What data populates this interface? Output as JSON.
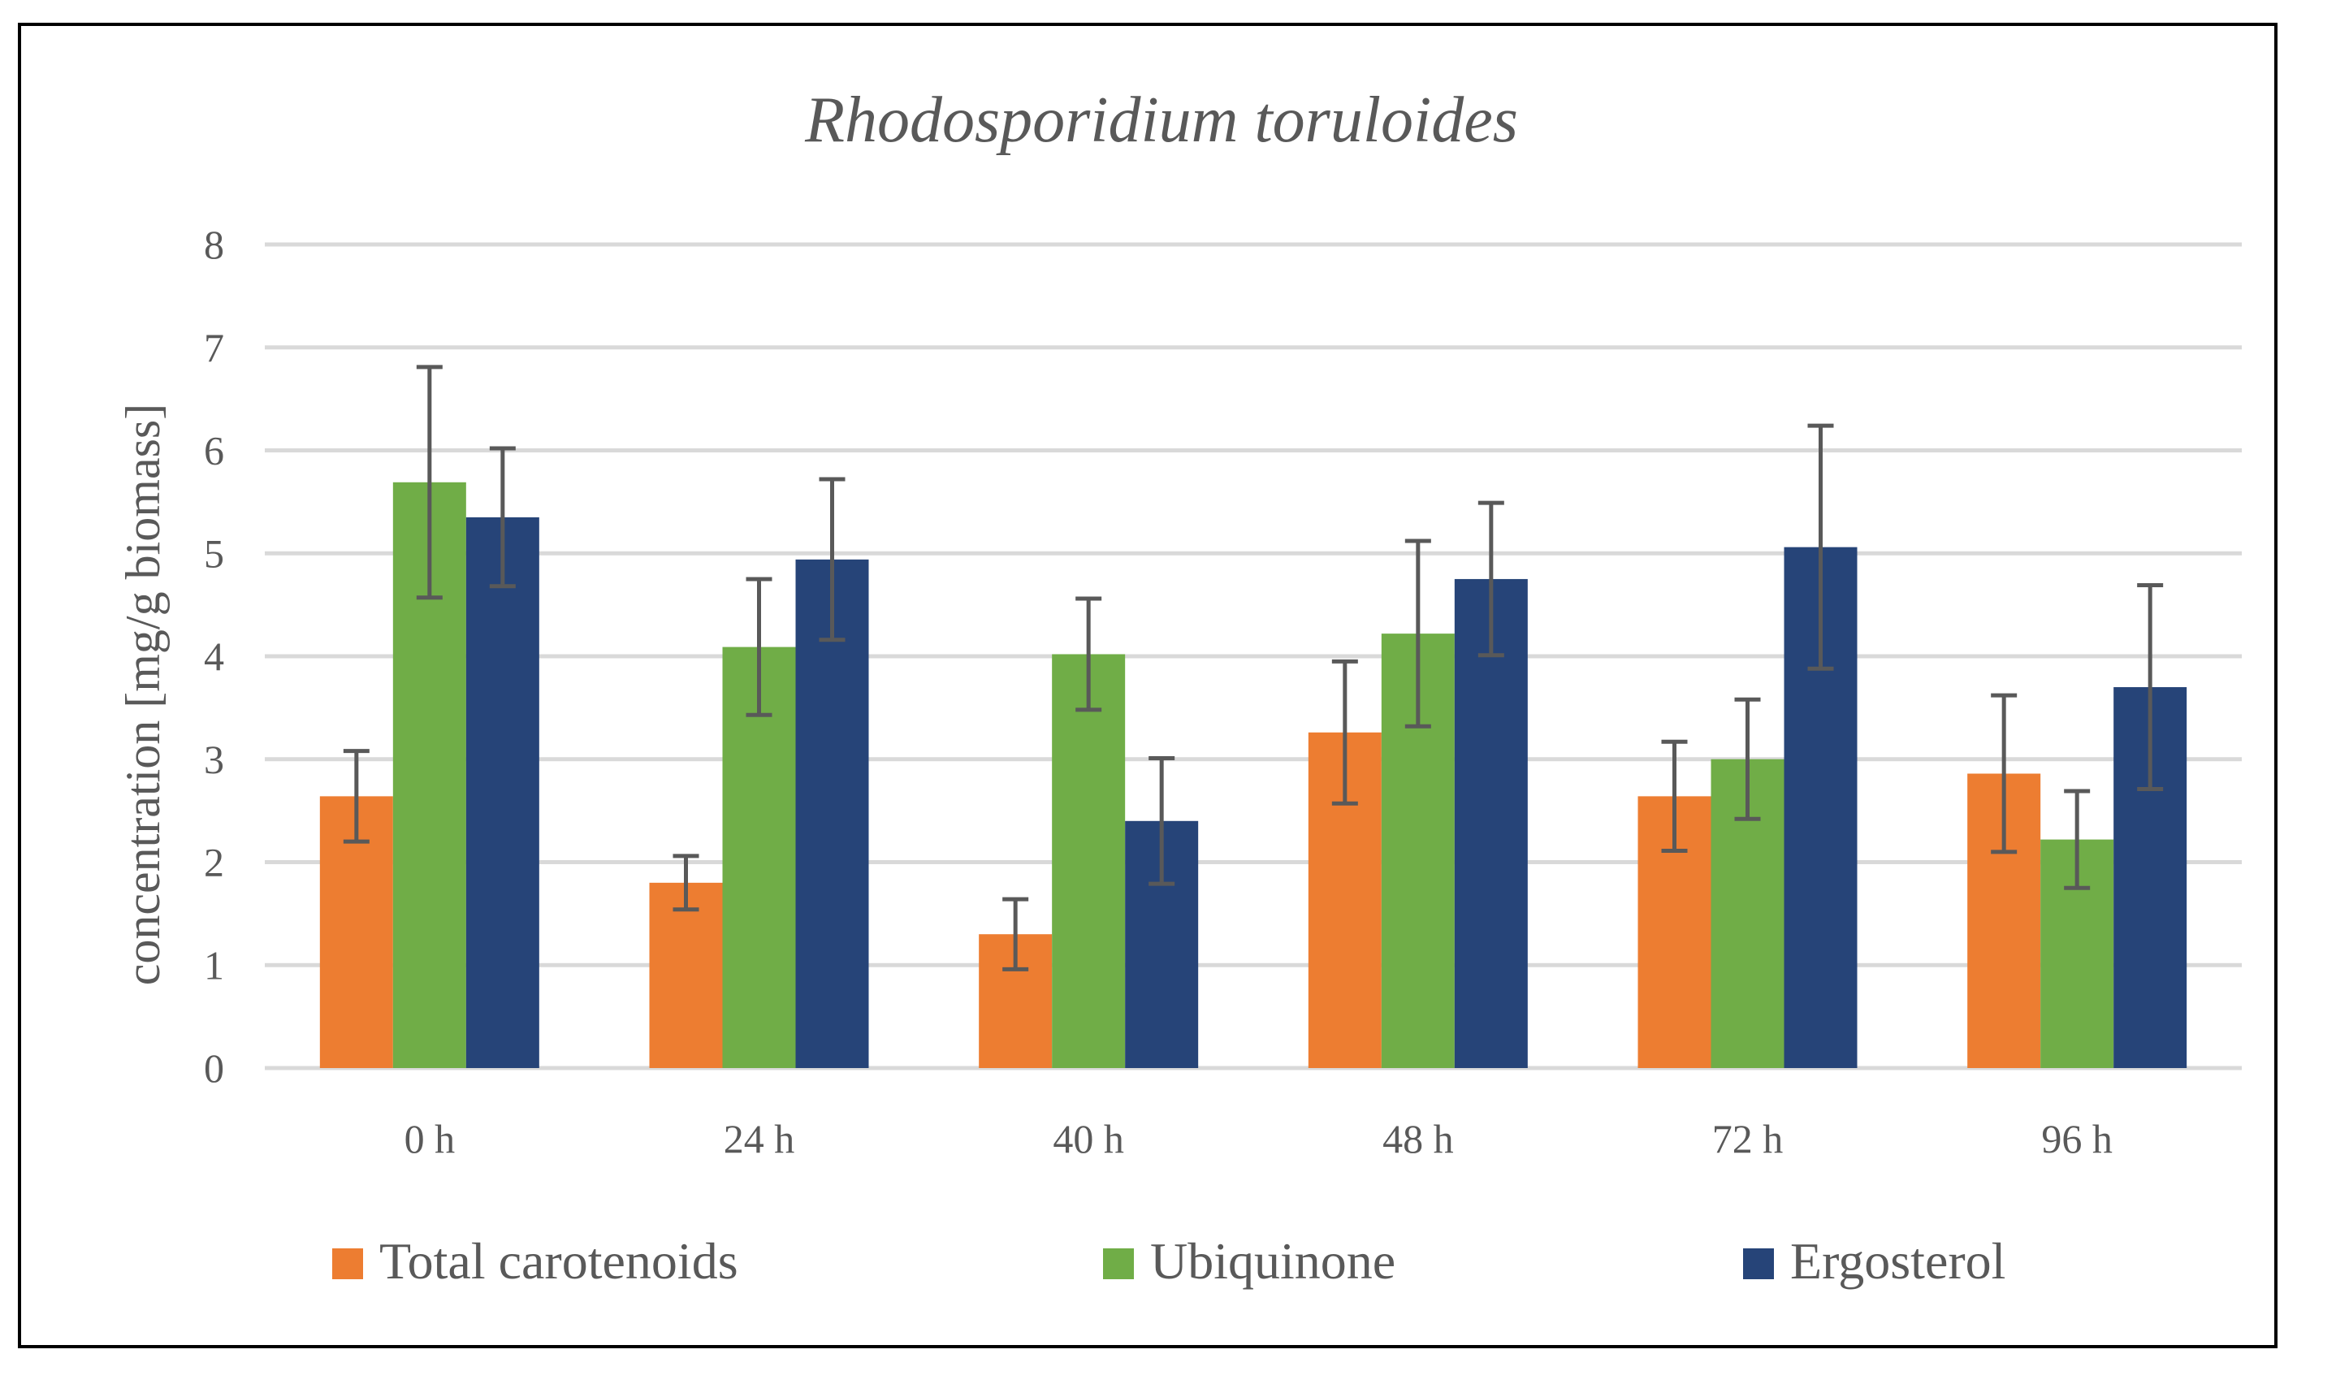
{
  "chart_data": {
    "type": "bar",
    "title": "Rhodosporidium toruloides",
    "xlabel": "",
    "ylabel": "concentration [mg/g biomass]",
    "ylim": [
      0,
      8
    ],
    "yticks": [
      0,
      1,
      2,
      3,
      4,
      5,
      6,
      7,
      8
    ],
    "grid": true,
    "legend_position": "bottom",
    "categories": [
      "0 h",
      "24 h",
      "40 h",
      "48 h",
      "72 h",
      "96 h"
    ],
    "series": [
      {
        "name": "Total carotenoids",
        "color": "#ed7d31",
        "values": [
          2.64,
          1.8,
          1.3,
          3.26,
          2.64,
          2.86
        ],
        "error": [
          0.44,
          0.26,
          0.34,
          0.69,
          0.53,
          0.76
        ]
      },
      {
        "name": "Ubiquinone",
        "color": "#70ad47",
        "values": [
          5.69,
          4.09,
          4.02,
          4.22,
          3.0,
          2.22
        ],
        "error": [
          1.12,
          0.66,
          0.54,
          0.9,
          0.58,
          0.47
        ]
      },
      {
        "name": "Ergosterol",
        "color": "#264478",
        "values": [
          5.35,
          4.94,
          2.4,
          4.75,
          5.06,
          3.7
        ],
        "error": [
          0.67,
          0.78,
          0.61,
          0.74,
          1.18,
          0.99
        ]
      }
    ]
  }
}
